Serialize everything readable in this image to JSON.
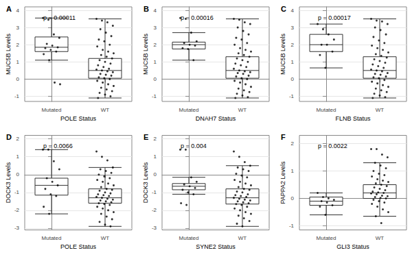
{
  "chart_data": [
    {
      "type": "boxplot",
      "title": "A",
      "annotation": "p = 0.00011",
      "x_label": "POLE Status",
      "y_label": "MUC5B Levels",
      "categories": [
        "Mutated",
        "WT"
      ],
      "color": "#000000",
      "grid": true,
      "ylim": [
        -1.3,
        4.2
      ],
      "yticks": [
        -1,
        0,
        1,
        2,
        3,
        4
      ],
      "boxes": [
        [
          1.1,
          1.6,
          1.85,
          2.45,
          3.55
        ],
        [
          -1.1,
          0.05,
          0.5,
          1.2,
          3.5
        ]
      ],
      "points": [
        [
          3.55,
          3.45,
          2.6,
          2.4,
          2.05,
          1.95,
          1.85,
          1.8,
          1.7,
          1.6,
          1.45,
          1.1,
          -0.2,
          -0.3
        ],
        [
          3.5,
          3.4,
          3.3,
          3.1,
          2.9,
          2.7,
          2.5,
          2.3,
          2.2,
          2.0,
          1.9,
          1.7,
          1.6,
          1.5,
          1.4,
          1.3,
          1.2,
          1.1,
          1.0,
          0.9,
          0.8,
          0.7,
          0.6,
          0.55,
          0.5,
          0.45,
          0.4,
          0.3,
          0.25,
          0.2,
          0.1,
          0.05,
          0.0,
          -0.1,
          -0.2,
          -0.3,
          -0.4,
          -0.5,
          -0.6,
          -0.7,
          -0.8,
          -0.9,
          -1.0,
          -1.1
        ]
      ]
    },
    {
      "type": "boxplot",
      "title": "B",
      "annotation": "p = 0.00016",
      "x_label": "DNAH7 Status",
      "y_label": "MUC5B Levels",
      "categories": [
        "Mutated",
        "WT"
      ],
      "color": "#000000",
      "grid": true,
      "ylim": [
        -1.3,
        4.2
      ],
      "yticks": [
        -1,
        0,
        1,
        2,
        3,
        4
      ],
      "boxes": [
        [
          1.1,
          1.75,
          2.0,
          2.15,
          2.7
        ],
        [
          -1.1,
          0.05,
          0.5,
          1.3,
          3.5
        ]
      ],
      "points": [
        [
          3.55,
          3.5,
          2.7,
          2.2,
          2.1,
          2.0,
          1.95,
          1.8,
          1.75,
          1.1
        ],
        [
          3.5,
          3.45,
          3.3,
          3.2,
          3.0,
          2.8,
          2.6,
          2.4,
          2.3,
          2.1,
          2.0,
          1.8,
          1.7,
          1.6,
          1.5,
          1.4,
          1.3,
          1.2,
          1.1,
          1.0,
          0.9,
          0.8,
          0.7,
          0.6,
          0.5,
          0.45,
          0.4,
          0.35,
          0.3,
          0.2,
          0.15,
          0.05,
          0.0,
          -0.1,
          -0.2,
          -0.3,
          -0.45,
          -0.55,
          -0.65,
          -0.75,
          -0.85,
          -0.95,
          -1.05,
          -1.1
        ]
      ]
    },
    {
      "type": "boxplot",
      "title": "C",
      "annotation": "p = 0.00017",
      "x_label": "FLNB Status",
      "y_label": "MUC5B Levels",
      "categories": [
        "Mutated",
        "WT"
      ],
      "color": "#000000",
      "grid": true,
      "ylim": [
        -1.3,
        4.2
      ],
      "yticks": [
        -1,
        0,
        1,
        2,
        3,
        4
      ],
      "boxes": [
        [
          0.65,
          1.6,
          2.0,
          2.6,
          3.2
        ],
        [
          -1.1,
          0.05,
          0.5,
          1.3,
          3.5
        ]
      ],
      "points": [
        [
          3.2,
          2.9,
          2.6,
          2.3,
          2.0,
          2.0,
          1.6,
          1.4,
          0.65
        ],
        [
          3.5,
          3.4,
          3.35,
          3.2,
          3.0,
          2.85,
          2.6,
          2.45,
          2.25,
          2.1,
          1.95,
          1.8,
          1.7,
          1.55,
          1.45,
          1.35,
          1.25,
          1.15,
          1.05,
          0.95,
          0.85,
          0.75,
          0.65,
          0.55,
          0.5,
          0.45,
          0.35,
          0.3,
          0.25,
          0.15,
          0.1,
          0.05,
          -0.05,
          -0.15,
          -0.25,
          -0.35,
          -0.45,
          -0.55,
          -0.65,
          -0.75,
          -0.85,
          -0.95,
          -1.05,
          -1.1
        ]
      ]
    },
    {
      "type": "boxplot",
      "title": "D",
      "annotation": "p = 0.0066",
      "x_label": "POLE Status",
      "y_label": "DOCK3 Levels",
      "categories": [
        "Mutated",
        "WT"
      ],
      "color": "#000000",
      "grid": true,
      "ylim": [
        -3.1,
        2.2
      ],
      "yticks": [
        -3,
        -2,
        -1,
        0,
        1,
        2
      ],
      "boxes": [
        [
          -2.2,
          -1.15,
          -0.6,
          -0.2,
          1.4
        ],
        [
          -2.9,
          -1.6,
          -1.3,
          -0.8,
          0.4
        ]
      ],
      "points": [
        [
          1.4,
          1.4,
          0.75,
          0.3,
          -0.2,
          -0.4,
          -0.6,
          -0.8,
          -1.1,
          -1.2,
          -1.8,
          -2.2
        ],
        [
          1.3,
          1.0,
          0.8,
          0.4,
          0.3,
          0.2,
          0.1,
          0.0,
          -0.1,
          -0.2,
          -0.3,
          -0.4,
          -0.5,
          -0.6,
          -0.7,
          -0.8,
          -0.85,
          -0.9,
          -1.0,
          -1.05,
          -1.1,
          -1.15,
          -1.2,
          -1.25,
          -1.3,
          -1.35,
          -1.4,
          -1.45,
          -1.5,
          -1.55,
          -1.6,
          -1.65,
          -1.7,
          -1.8,
          -1.9,
          -2.0,
          -2.1,
          -2.2,
          -2.35,
          -2.5,
          -2.65,
          -2.8,
          -2.9
        ]
      ]
    },
    {
      "type": "boxplot",
      "title": "E",
      "annotation": "p = 0.004",
      "x_label": "SYNE2 Status",
      "y_label": "DOCK3 Levels",
      "categories": [
        "Mutated",
        "WT"
      ],
      "color": "#000000",
      "grid": true,
      "ylim": [
        -3.1,
        2.2
      ],
      "yticks": [
        -3,
        -2,
        -1,
        0,
        1,
        2
      ],
      "boxes": [
        [
          -1.1,
          -0.85,
          -0.65,
          -0.5,
          -0.15
        ],
        [
          -2.9,
          -1.65,
          -1.3,
          -0.8,
          0.5
        ]
      ],
      "points": [
        [
          1.4,
          1.4,
          -0.15,
          -0.4,
          -0.55,
          -0.65,
          -0.75,
          -0.85,
          -1.0,
          -1.1,
          -1.6,
          -1.7
        ],
        [
          1.3,
          1.0,
          0.7,
          0.5,
          0.4,
          0.3,
          0.2,
          0.05,
          -0.05,
          -0.15,
          -0.3,
          -0.4,
          -0.5,
          -0.6,
          -0.7,
          -0.8,
          -0.85,
          -0.95,
          -1.0,
          -1.1,
          -1.15,
          -1.2,
          -1.25,
          -1.3,
          -1.35,
          -1.4,
          -1.45,
          -1.5,
          -1.55,
          -1.6,
          -1.65,
          -1.7,
          -1.8,
          -1.9,
          -2.0,
          -2.1,
          -2.2,
          -2.3,
          -2.45,
          -2.6,
          -2.75,
          -2.9
        ]
      ]
    },
    {
      "type": "boxplot",
      "title": "F",
      "annotation": "p = 0.0022",
      "x_label": "GLI3 Status",
      "y_label": "PAPPA2 Levels",
      "categories": [
        "Mutated",
        "WT"
      ],
      "color": "#000000",
      "grid": true,
      "ylim": [
        -1.15,
        2.3
      ],
      "yticks": [
        -1,
        0,
        1,
        2
      ],
      "boxes": [
        [
          -0.6,
          -0.25,
          -0.1,
          0.05,
          0.2
        ],
        [
          -0.65,
          0.0,
          0.2,
          0.5,
          1.3
        ]
      ],
      "points": [
        [
          0.2,
          0.05,
          0.0,
          -0.05,
          -0.1,
          -0.15,
          -0.25,
          -0.3,
          -0.6
        ],
        [
          1.8,
          1.8,
          1.6,
          1.5,
          1.3,
          1.2,
          1.1,
          1.0,
          0.9,
          0.85,
          0.8,
          0.7,
          0.65,
          0.6,
          0.55,
          0.5,
          0.45,
          0.4,
          0.35,
          0.3,
          0.25,
          0.22,
          0.2,
          0.18,
          0.15,
          0.1,
          0.08,
          0.05,
          0.02,
          0.0,
          -0.05,
          -0.1,
          -0.15,
          -0.2,
          -0.3,
          -0.4,
          -0.5,
          -0.65,
          -0.9
        ]
      ]
    }
  ]
}
